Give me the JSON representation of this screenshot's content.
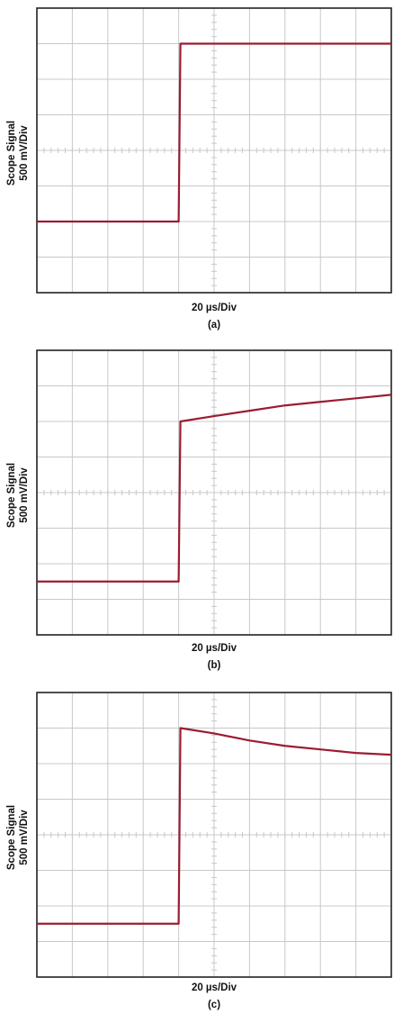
{
  "chart_data": [
    {
      "type": "line",
      "panel_label": "(a)",
      "xlabel": "20 µs/Div",
      "ylabel": [
        "Scope Signal",
        "500 mV/Div"
      ],
      "x_divisions": 10,
      "y_divisions": 8,
      "grid": true,
      "line_color": "#9b1c31",
      "grid_color": "#c8c8c8",
      "series": [
        {
          "x": [
            0,
            4.0,
            4.05,
            10
          ],
          "y": [
            -2.0,
            -2.0,
            3.0,
            3.0
          ]
        }
      ]
    },
    {
      "type": "line",
      "panel_label": "(b)",
      "xlabel": "20 µs/Div",
      "ylabel": [
        "Scope Signal",
        "500 mV/Div"
      ],
      "x_divisions": 10,
      "y_divisions": 8,
      "grid": true,
      "line_color": "#9b1c31",
      "grid_color": "#c8c8c8",
      "series": [
        {
          "x": [
            0,
            4.0,
            4.05,
            5,
            6,
            7,
            8,
            9,
            10
          ],
          "y": [
            -2.5,
            -2.5,
            2.0,
            2.15,
            2.3,
            2.45,
            2.55,
            2.65,
            2.75
          ]
        }
      ]
    },
    {
      "type": "line",
      "panel_label": "(c)",
      "xlabel": "20 µs/Div",
      "ylabel": [
        "Scope Signal",
        "500 mV/Div"
      ],
      "x_divisions": 10,
      "y_divisions": 8,
      "grid": true,
      "line_color": "#9b1c31",
      "grid_color": "#c8c8c8",
      "series": [
        {
          "x": [
            0,
            4.0,
            4.05,
            5,
            6,
            7,
            8,
            9,
            10
          ],
          "y": [
            -2.5,
            -2.5,
            3.0,
            2.85,
            2.65,
            2.5,
            2.4,
            2.3,
            2.25
          ]
        }
      ]
    }
  ]
}
